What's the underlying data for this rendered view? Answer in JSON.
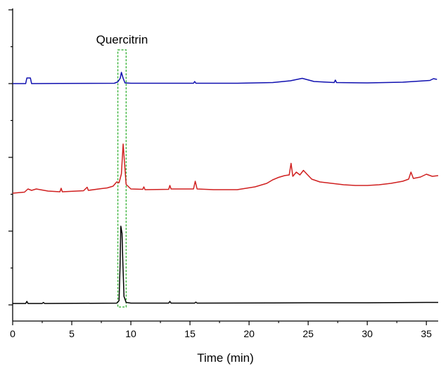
{
  "chart_data": {
    "type": "line",
    "xlabel": "Time (min)",
    "ylabel": "",
    "xlim": [
      0,
      36
    ],
    "x_ticks": [
      0,
      5,
      10,
      15,
      20,
      25,
      30,
      35
    ],
    "y_ticks_labeled": false,
    "grid": false,
    "legend": "none",
    "annotation": {
      "label": "Quercitrin",
      "x_range": [
        8.9,
        9.6
      ],
      "style": "dashed-box",
      "color": "#22aa22"
    },
    "series": [
      {
        "color": "#1010b0",
        "baseline": 0,
        "x": [
          0,
          1.1,
          1.2,
          1.5,
          1.6,
          4,
          8.6,
          8.9,
          9.1,
          9.2,
          9.35,
          9.5,
          10,
          13,
          15.3,
          15.4,
          15.5,
          19,
          22,
          23.5,
          24.5,
          25.5,
          27.2,
          27.3,
          27.4,
          30,
          33,
          35.3,
          35.6,
          35.9
        ],
        "y": [
          0,
          0,
          1.6,
          1.6,
          0,
          0.05,
          0.1,
          0.5,
          1.5,
          3.2,
          1.5,
          0.2,
          0.1,
          0.1,
          0.1,
          0.6,
          0.1,
          0.1,
          0.3,
          0.8,
          1.5,
          0.6,
          0.3,
          1.0,
          0.3,
          0.2,
          0.4,
          0.9,
          1.4,
          1.2
        ]
      },
      {
        "color": "#d02020",
        "baseline": 0,
        "x": [
          0,
          1.0,
          1.3,
          1.6,
          2.0,
          3,
          4.0,
          4.1,
          4.2,
          6.0,
          6.3,
          6.4,
          7.5,
          8.0,
          8.5,
          8.8,
          9.0,
          9.2,
          9.35,
          9.6,
          10,
          11,
          11.1,
          11.2,
          13.2,
          13.3,
          13.4,
          15.3,
          15.45,
          15.6,
          17,
          19,
          20.5,
          21.5,
          22,
          22.5,
          23,
          23.4,
          23.55,
          23.7,
          24.0,
          24.3,
          24.6,
          24.9,
          25.3,
          26,
          27,
          28,
          29,
          30,
          31,
          32,
          33,
          33.5,
          33.7,
          33.9,
          34.5,
          35,
          35.5,
          36
        ],
        "y": [
          0,
          0.3,
          1.2,
          0.8,
          1.2,
          0.6,
          0.4,
          1.4,
          0.4,
          0.7,
          1.7,
          0.8,
          1.3,
          1.5,
          2.0,
          3.2,
          3.0,
          5.5,
          14.0,
          2.5,
          1.2,
          1.1,
          1.8,
          1.0,
          1.1,
          2.2,
          1.2,
          1.2,
          3.4,
          1.2,
          1.0,
          1.0,
          1.8,
          2.8,
          3.8,
          4.5,
          5.0,
          5.2,
          8.5,
          4.8,
          6.0,
          5.2,
          6.5,
          5.4,
          4.0,
          3.2,
          2.8,
          2.4,
          2.2,
          2.2,
          2.4,
          2.8,
          3.4,
          4.0,
          6.0,
          4.2,
          4.6,
          5.4,
          4.8,
          5.0
        ]
      },
      {
        "color": "#000000",
        "baseline": 0,
        "x": [
          0,
          1.1,
          1.2,
          1.3,
          2.5,
          2.6,
          2.7,
          8.8,
          9.0,
          9.08,
          9.15,
          9.2,
          9.25,
          9.32,
          9.42,
          9.6,
          10,
          13.2,
          13.3,
          13.4,
          15.4,
          15.5,
          15.6,
          22,
          25,
          30,
          35,
          36
        ],
        "y": [
          0,
          0,
          0.6,
          0,
          0,
          0.3,
          0,
          0.1,
          0.8,
          10.0,
          22.0,
          21.0,
          20.0,
          12.0,
          2.0,
          0.3,
          0.1,
          0.1,
          0.6,
          0.1,
          0.1,
          0.4,
          0.1,
          0.15,
          0.2,
          0.2,
          0.3,
          0.3
        ]
      }
    ]
  }
}
